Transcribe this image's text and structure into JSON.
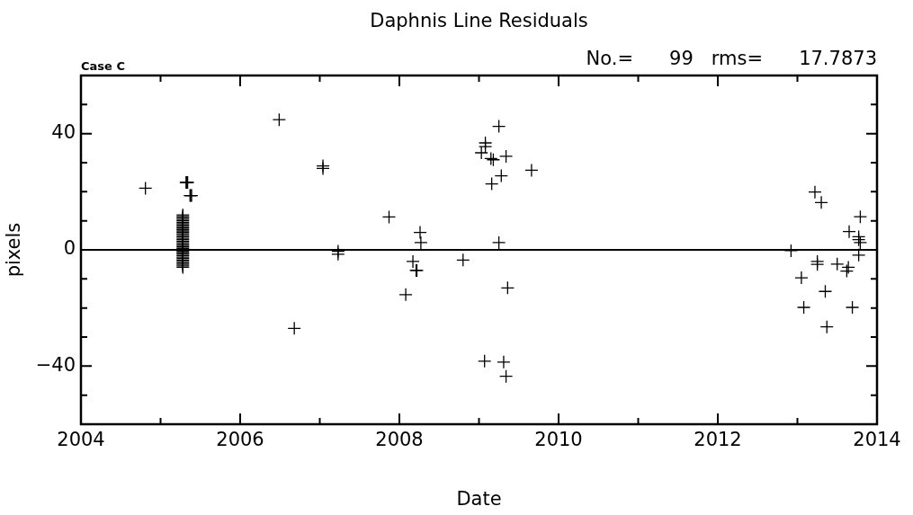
{
  "chart_data": {
    "type": "scatter",
    "title": "Daphnis Line Residuals",
    "xlabel": "Date",
    "ylabel": "pixels",
    "annotations": [
      "Case C",
      "No.=      99   rms=      17.7873"
    ],
    "series": [
      {
        "color": "#000000",
        "marker": "cross",
        "x": [
          2004.81,
          2005.28,
          2005.28,
          2005.28,
          2005.28,
          2005.28,
          2005.28,
          2005.28,
          2005.28,
          2005.28,
          2005.28,
          2005.28,
          2005.28,
          2005.28,
          2005.28,
          2005.28,
          2005.28,
          2005.28,
          2005.28,
          2005.28,
          2005.28,
          2005.28,
          2005.28,
          2005.28,
          2005.28,
          2005.28,
          2005.28,
          2005.28,
          2005.28,
          2005.28,
          2005.28,
          2005.28,
          2005.28,
          2005.28,
          2005.28,
          2005.28,
          2005.28,
          2005.32,
          2005.33,
          2005.34,
          2005.37,
          2005.38,
          2005.39,
          2006.49,
          2006.68,
          2007.04,
          2007.04,
          2007.23,
          2007.23,
          2007.87,
          2008.08,
          2008.17,
          2008.21,
          2008.22,
          2008.26,
          2008.27,
          2008.8,
          2009.03,
          2009.07,
          2009.08,
          2009.08,
          2009.15,
          2009.16,
          2009.18,
          2009.25,
          2009.25,
          2009.28,
          2009.31,
          2009.34,
          2009.34,
          2009.36,
          2009.66,
          2012.92,
          2013.05,
          2013.08,
          2013.22,
          2013.25,
          2013.25,
          2013.3,
          2013.35,
          2013.37,
          2013.5,
          2013.62,
          2013.64,
          2013.65,
          2013.69,
          2013.77,
          2013.77,
          2013.77,
          2013.79,
          2013.79
        ],
        "values": [
          21.2,
          12,
          11.5,
          11,
          10.5,
          10,
          9.5,
          9,
          8.5,
          8,
          7.5,
          7,
          6.5,
          6,
          5.5,
          5,
          4.5,
          4,
          3.5,
          3,
          2.5,
          2,
          1.5,
          1,
          0.5,
          -0.5,
          -1,
          -1.5,
          -2,
          -2.5,
          -3,
          -3.5,
          -4,
          -4.5,
          -5,
          -5.5,
          -6,
          23.2,
          23.2,
          23.2,
          18.7,
          18.7,
          18.7,
          44.8,
          -27,
          28.9,
          28,
          -0.5,
          -1.5,
          11.3,
          -15.4,
          -4,
          -7.1,
          -7.1,
          6,
          2.5,
          -3.5,
          33.4,
          -38.3,
          36.8,
          35.5,
          31.4,
          22.7,
          31,
          42.5,
          2.5,
          25.5,
          -38.6,
          32.2,
          -43.5,
          -13.1,
          27.4,
          -0.3,
          -9.6,
          -19.8,
          19.9,
          -4,
          -5,
          16.3,
          -14.3,
          -26.5,
          -4.9,
          -7.3,
          -6,
          6.3,
          -19.8,
          4.5,
          3.5,
          -1.8,
          11.4,
          2.5
        ]
      }
    ],
    "xlim": [
      2004,
      2014
    ],
    "xticks": [
      2004,
      {
        "value": 2005,
        "label": null
      },
      2006,
      {
        "value": 2007,
        "label": null
      },
      2008,
      {
        "value": 2009,
        "label": null
      },
      2010,
      {
        "value": 2011,
        "label": null
      },
      2012,
      {
        "value": 2013,
        "label": null
      },
      2014
    ],
    "ylim": [
      -60,
      60
    ],
    "yticks": [
      {
        "value": -50,
        "label": null
      },
      {
        "value": -40,
        "label": "−40"
      },
      {
        "value": -30,
        "label": null
      },
      {
        "value": -20,
        "label": null
      },
      {
        "value": -10,
        "label": null
      },
      0,
      {
        "value": 10,
        "label": null
      },
      {
        "value": 20,
        "label": null
      },
      {
        "value": 30,
        "label": null
      },
      40,
      {
        "value": 50,
        "label": null
      }
    ],
    "ref_lines": [
      {
        "axis": "y",
        "value": 0,
        "color": "#000000",
        "line_style": "solid"
      }
    ],
    "grid": false,
    "legend": false
  }
}
